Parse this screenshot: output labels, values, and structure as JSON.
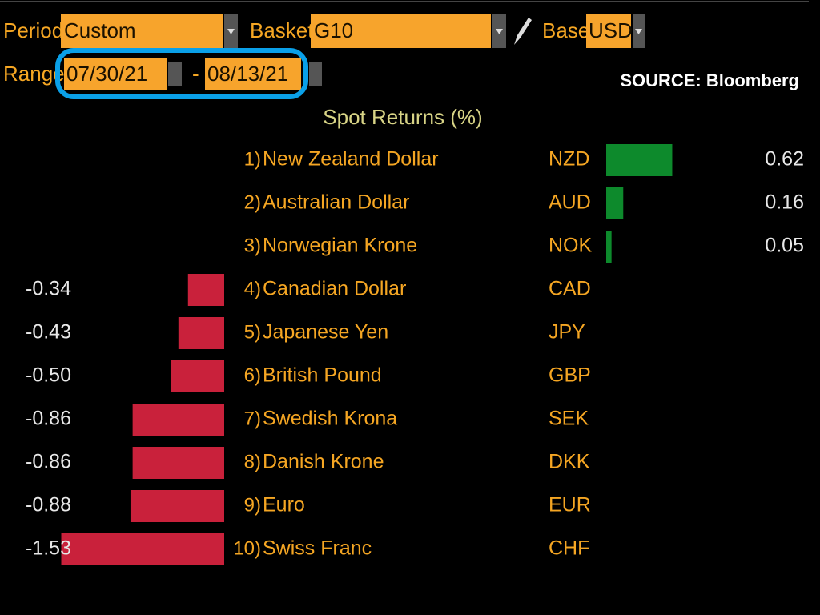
{
  "controls": {
    "period_label": "Period",
    "period": "Custom",
    "basket_label": "Basket",
    "basket": "G10",
    "base_label": "Base",
    "base": "USD",
    "range_label": "Range",
    "range_start": "07/30/21",
    "range_sep": "-",
    "range_end": "08/13/21"
  },
  "source": "SOURCE: Bloomberg",
  "chart_data": {
    "type": "bar",
    "title": "Spot Returns (%)",
    "ranks": [
      "1)",
      "2)",
      "3)",
      "4)",
      "5)",
      "6)",
      "7)",
      "8)",
      "9)",
      "10)"
    ],
    "categories": [
      "New Zealand Dollar",
      "Australian Dollar",
      "Norwegian Krone",
      "Canadian Dollar",
      "Japanese Yen",
      "British Pound",
      "Swedish Krona",
      "Danish Krone",
      "Euro",
      "Swiss Franc"
    ],
    "codes": [
      "NZD",
      "AUD",
      "NOK",
      "CAD",
      "JPY",
      "GBP",
      "SEK",
      "DKK",
      "EUR",
      "CHF"
    ],
    "values": [
      0.62,
      0.16,
      0.05,
      -0.34,
      -0.43,
      -0.5,
      -0.86,
      -0.86,
      -0.88,
      -1.53
    ],
    "value_labels": [
      "0.62",
      "0.16",
      "0.05",
      "-0.34",
      "-0.43",
      "-0.50",
      "-0.86",
      "-0.86",
      "-0.88",
      "-1.53"
    ],
    "positive_color": "#0d8a2c",
    "negative_color": "#c9213b"
  }
}
